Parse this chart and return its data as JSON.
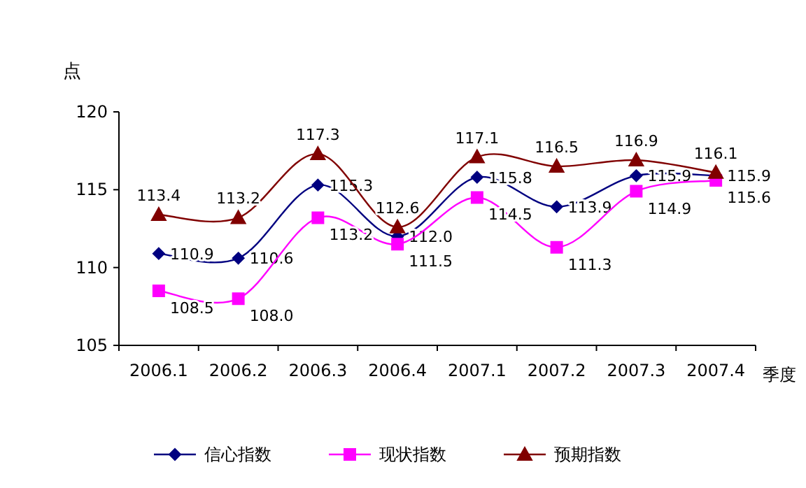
{
  "chart_data": {
    "type": "line",
    "ylabel": "点",
    "xlabel": "季度",
    "categories": [
      "2006.1",
      "2006.2",
      "2006.3",
      "2006.4",
      "2007.1",
      "2007.2",
      "2007.3",
      "2007.4"
    ],
    "series": [
      {
        "name": "信心指数",
        "color": "#000080",
        "marker": "diamond",
        "values": [
          110.9,
          110.6,
          115.3,
          112.0,
          115.8,
          113.9,
          115.9,
          115.9
        ],
        "value_labels": [
          "110.9",
          "110.6",
          "115.3",
          "112.0",
          "115.8",
          "113.9",
          "115.9",
          "115.9"
        ]
      },
      {
        "name": "现状指数",
        "color": "#ff00ff",
        "marker": "square",
        "values": [
          108.5,
          108.0,
          113.2,
          111.5,
          114.5,
          111.3,
          114.9,
          115.6
        ],
        "value_labels": [
          "108.5",
          "108.0",
          "113.2",
          "111.5",
          "114.5",
          "111.3",
          "114.9",
          "115.6"
        ]
      },
      {
        "name": "预期指数",
        "color": "#800000",
        "marker": "triangle",
        "values": [
          113.4,
          113.2,
          117.3,
          112.6,
          117.1,
          116.5,
          116.9,
          116.1
        ],
        "value_labels": [
          "113.4",
          "113.2",
          "117.3",
          "112.6",
          "117.1",
          "116.5",
          "116.9",
          "116.1"
        ]
      }
    ],
    "ylim": [
      105,
      120
    ],
    "yticks": [
      105,
      110,
      115,
      120
    ],
    "legend": "bottom",
    "grid": false
  }
}
